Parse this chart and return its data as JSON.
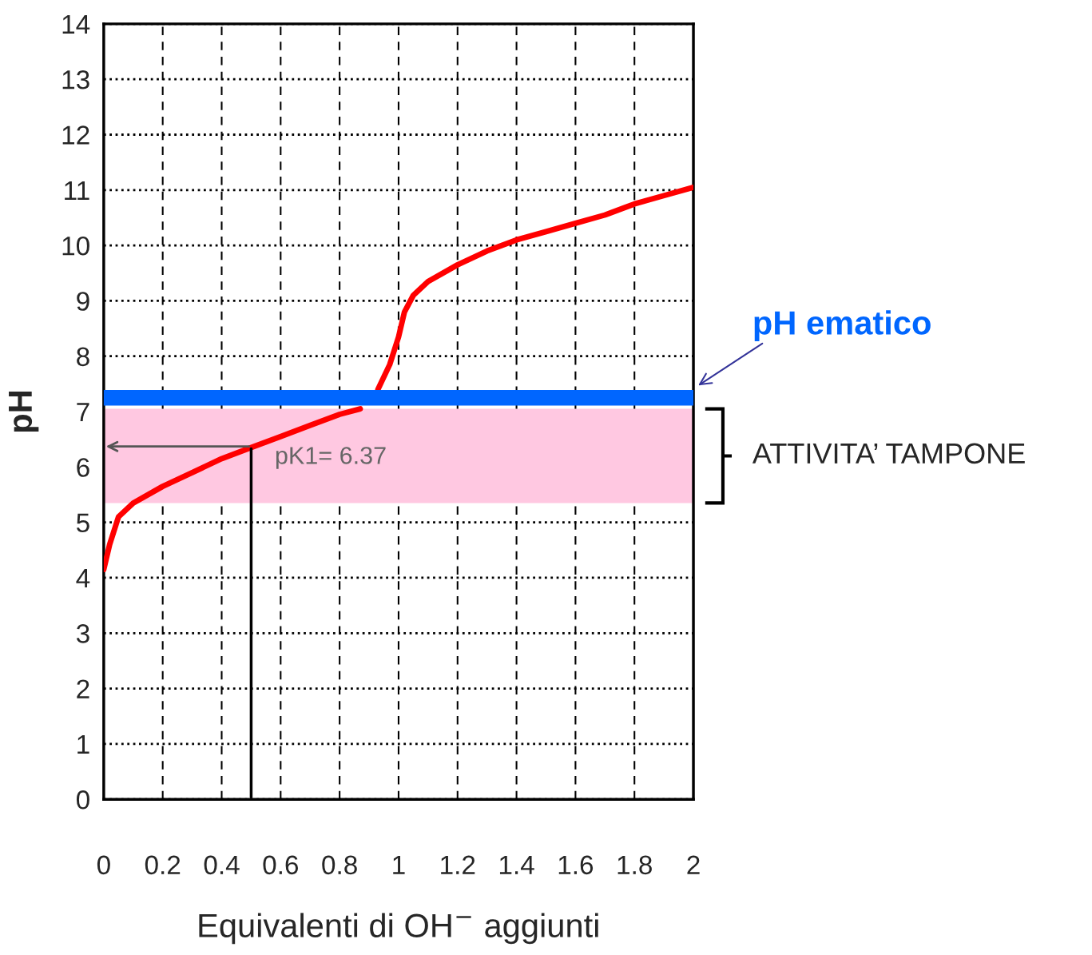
{
  "chart_data": {
    "type": "line",
    "xlabel": "Equivalenti di OH$^{−}$ aggiunti",
    "ylabel": "pH",
    "x": [
      0,
      0.02,
      0.05,
      0.1,
      0.2,
      0.3,
      0.4,
      0.5,
      0.6,
      0.7,
      0.8,
      0.87,
      0.9,
      0.93,
      0.97,
      1.0,
      1.02,
      1.05,
      1.1,
      1.2,
      1.3,
      1.4,
      1.5,
      1.6,
      1.7,
      1.8,
      1.9,
      2.0
    ],
    "series": [
      {
        "color": "#ff0000",
        "values": [
          4.15,
          4.6,
          5.1,
          5.35,
          5.65,
          5.9,
          6.15,
          6.35,
          6.55,
          6.75,
          6.95,
          7.05,
          null,
          7.4,
          7.85,
          8.35,
          8.8,
          9.1,
          9.35,
          9.65,
          9.9,
          10.1,
          10.25,
          10.4,
          10.55,
          10.75,
          10.9,
          11.05
        ]
      }
    ],
    "xlim": [
      0,
      2
    ],
    "xticks": [
      0,
      0.2,
      0.4,
      0.6,
      0.8,
      1,
      1.2,
      1.4,
      1.6,
      1.8,
      2
    ],
    "ylim": [
      0,
      14
    ],
    "yticks": [
      0,
      1,
      2,
      3,
      4,
      5,
      6,
      7,
      8,
      9,
      10,
      11,
      12,
      13,
      14
    ],
    "grid": true,
    "marker": "none",
    "line_style": "solid",
    "legend": false,
    "ref_lines": [
      {
        "axis": "y",
        "value": 7.25,
        "label": "pH ematico",
        "color": "#0066ff"
      }
    ],
    "bands": [
      {
        "axis": "y",
        "from": 5.35,
        "to": 7.05,
        "label": "ATTIVITA’ TAMPONE",
        "color": "#ffc8e1"
      }
    ],
    "annotations": [
      {
        "text": "pK1= 6.37",
        "x": 0.5,
        "y": 6.37
      }
    ]
  }
}
